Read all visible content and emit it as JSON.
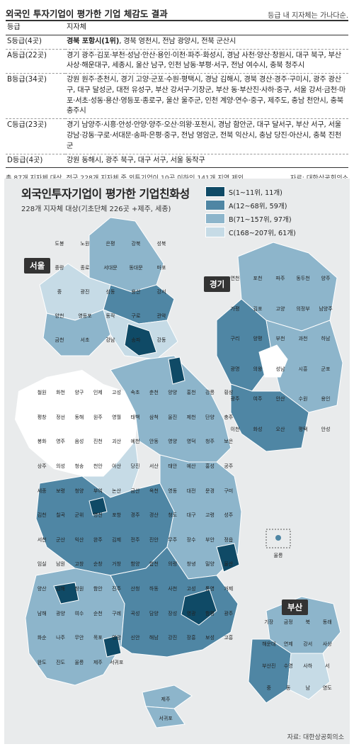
{
  "top": {
    "title": "외국인 투자기업이 평가한 기업 체감도 결과",
    "note": "등급 내 지자체는 가나다순.",
    "header": {
      "grade": "등급",
      "local": "지자체"
    },
    "rows": [
      {
        "grade": "S등급(4곳)",
        "first": "경북 포항시(1위)",
        "rest": ", 경북 영천시, 전남 광양시, 전북 군산시"
      },
      {
        "grade": "A등급(22곳)",
        "first": "",
        "rest": "경기 광주·김포·부천·성남·안산·용인·이천·파주·화성시, 경남 사천·양산·창원시, 대구 북구, 부산 사상·해운대구, 세종시, 울산 남구, 인천 남동·부평·서구, 전남 여수시, 충북 청주시"
      },
      {
        "grade": "B등급(34곳)",
        "first": "",
        "rest": "강원 원주·춘천시, 경기 고양·군포·수원·평택시, 경남 김해시, 경북 경산·경주·구미시, 광주 광산구, 대구 달성군, 대전 유성구, 부산 강서구·기장군, 부산 동·부산진·사하·중구, 서울 강서·금천·마포·서초·성동·용산·영등포·종로구, 울산 울주군, 인천 계양·연수·중구, 제주도, 충남 천안시, 충북 충주시"
      },
      {
        "grade": "C등급(23곳)",
        "first": "",
        "rest": "경기 남양주·시흥·안성·안양·양주·오산·의왕·포천시, 경남 함안군, 대구 달서구, 부산 서구, 서울 강남·강동·구로·서대문·송파·은평·중구, 전남 영암군, 전북 익산시, 충남 당진·아산시, 충북 진천군"
      },
      {
        "grade": "D등급(4곳)",
        "first": "",
        "rest": "강원 동해시, 광주 북구, 대구 서구, 서울 동작구"
      }
    ],
    "footnote": "총 87개 지자체 대상. 전국 228개 지자체 중 외투기업이 10곳 이하인 141개 지역 제외.",
    "source": "자료: 대한상공회의소"
  },
  "map": {
    "title": "외국인투자기업이 평가한 기업친화성",
    "subtitle": "228개 지자체 대상(기초단체 226곳 +제주, 세종)",
    "legend": [
      {
        "label": "S(1~11위, 11개)",
        "color": "#0f4a66"
      },
      {
        "label": "A(12~68위, 59개)",
        "color": "#4f86a4"
      },
      {
        "label": "B(71~157위, 97개)",
        "color": "#8db5cb"
      },
      {
        "label": "C(168~207위, 61개)",
        "color": "#c6dbe6"
      }
    ],
    "insets": {
      "seoul": "서울",
      "gyeonggi": "경기",
      "busan": "부산"
    },
    "places": {
      "seoul": [
        "도봉",
        "노원",
        "은평",
        "강북",
        "성북",
        "중랑",
        "종로",
        "서대문",
        "동대문",
        "마포",
        "중",
        "광진",
        "성동",
        "용산",
        "강서",
        "양천",
        "영등포",
        "동작",
        "구로",
        "관악",
        "금천",
        "서초",
        "강남",
        "송파",
        "강동"
      ],
      "gyeonggi": [
        "연천",
        "포천",
        "파주",
        "동두천",
        "양주",
        "가평",
        "김포",
        "고양",
        "의정부",
        "남양주",
        "구리",
        "양평",
        "부천",
        "과천",
        "하남",
        "광명",
        "의왕",
        "성남",
        "시흥",
        "군포",
        "광주",
        "여주",
        "안산",
        "수원",
        "용인",
        "이천",
        "화성",
        "오산",
        "평택",
        "안성"
      ],
      "main": [
        "철원",
        "화천",
        "양구",
        "인제",
        "고성",
        "속초",
        "춘천",
        "양양",
        "홍천",
        "강릉",
        "횡성",
        "평창",
        "정선",
        "동해",
        "원주",
        "영월",
        "태백",
        "삼척",
        "울진",
        "제천",
        "단양",
        "충주",
        "봉화",
        "영주",
        "음성",
        "진천",
        "괴산",
        "예천",
        "안동",
        "영양",
        "영덕",
        "청주",
        "보은",
        "상주",
        "의성",
        "청송",
        "천안",
        "아산",
        "당진",
        "서산",
        "태안",
        "예산",
        "홍성",
        "공주",
        "세종",
        "보령",
        "청양",
        "부여",
        "논산",
        "금산",
        "옥천",
        "영동",
        "대전",
        "문경",
        "구미",
        "김천",
        "칠곡",
        "군위",
        "영천",
        "포항",
        "경주",
        "경산",
        "청도",
        "대구",
        "고령",
        "성주",
        "서천",
        "군산",
        "익산",
        "완주",
        "김제",
        "전주",
        "진안",
        "무주",
        "장수",
        "부안",
        "정읍",
        "임실",
        "남원",
        "고창",
        "순창",
        "거창",
        "함양",
        "합천",
        "의령",
        "창녕",
        "밀양",
        "울산",
        "양산",
        "김해",
        "창원",
        "함안",
        "진주",
        "산청",
        "하동",
        "사천",
        "고성",
        "통영",
        "거제",
        "남해",
        "광양",
        "여수",
        "순천",
        "구례",
        "곡성",
        "담양",
        "장성",
        "영광",
        "함평",
        "광주",
        "화순",
        "나주",
        "무안",
        "목포",
        "영암",
        "신안",
        "해남",
        "강진",
        "장흥",
        "보성",
        "고흥",
        "완도",
        "진도",
        "울릉",
        "제주",
        "서귀포"
      ],
      "busan": [
        "기장",
        "금정",
        "북",
        "동래",
        "해운대",
        "연제",
        "강서",
        "사상",
        "부산진",
        "수영",
        "사하",
        "서",
        "중",
        "동",
        "남",
        "영도"
      ]
    },
    "source": "자료: 대한상공회의소"
  }
}
